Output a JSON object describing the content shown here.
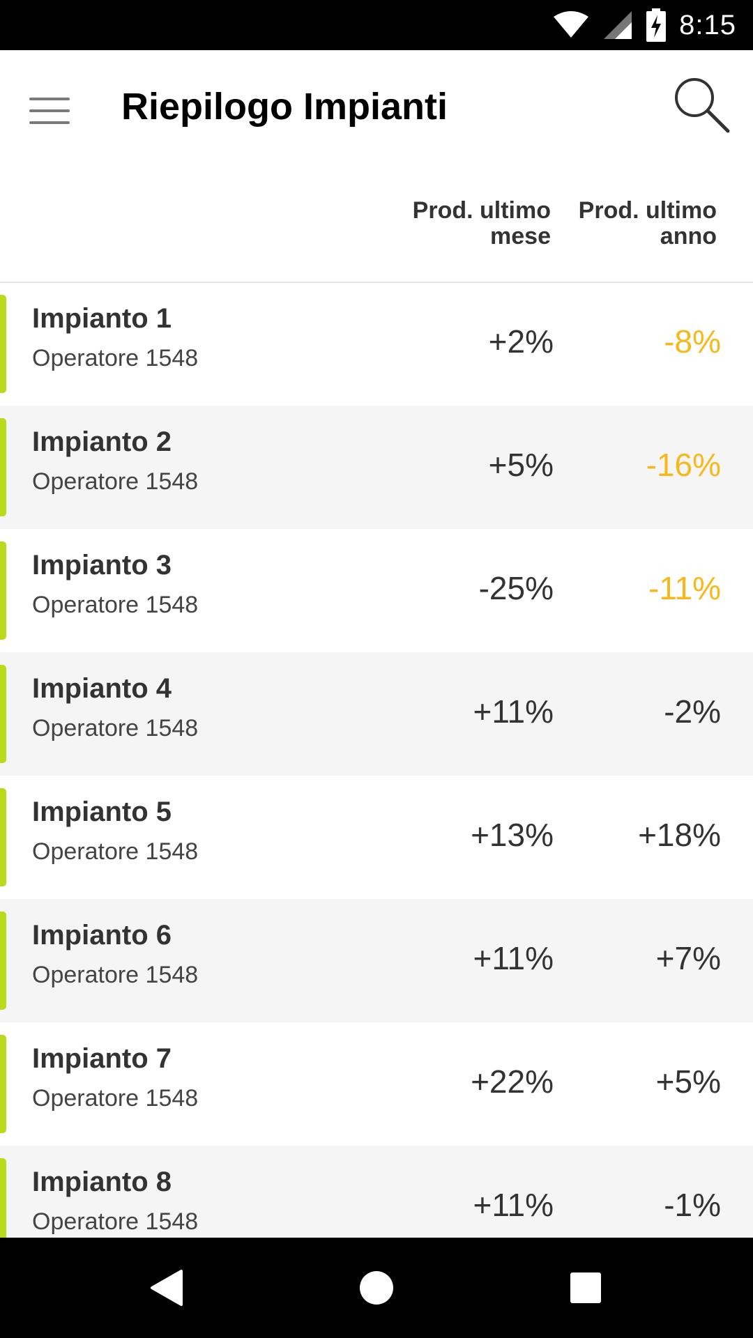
{
  "status_bar": {
    "time": "8:15",
    "icons": [
      "wifi-icon",
      "signal-icon",
      "battery-charging-icon"
    ]
  },
  "app_bar": {
    "title": "Riepilogo Impianti",
    "menu_icon": "menu-icon",
    "search_icon": "search-icon"
  },
  "columns": {
    "month": "Prod. ultimo mese",
    "year": "Prod. ultimo anno"
  },
  "colors": {
    "accent": "#b9db1c",
    "warning": "#f7b81c",
    "text": "#333333"
  },
  "rows": [
    {
      "name": "Impianto 1",
      "operator": "Operatore 1548",
      "month": "+2%",
      "year": "-8%",
      "year_warn": true
    },
    {
      "name": "Impianto 2",
      "operator": "Operatore 1548",
      "month": "+5%",
      "year": "-16%",
      "year_warn": true
    },
    {
      "name": "Impianto 3",
      "operator": "Operatore 1548",
      "month": "-25%",
      "year": "-11%",
      "year_warn": true
    },
    {
      "name": "Impianto 4",
      "operator": "Operatore 1548",
      "month": "+11%",
      "year": "-2%",
      "year_warn": false
    },
    {
      "name": "Impianto 5",
      "operator": "Operatore 1548",
      "month": "+13%",
      "year": "+18%",
      "year_warn": false
    },
    {
      "name": "Impianto 6",
      "operator": "Operatore 1548",
      "month": "+11%",
      "year": "+7%",
      "year_warn": false
    },
    {
      "name": "Impianto 7",
      "operator": "Operatore 1548",
      "month": "+22%",
      "year": "+5%",
      "year_warn": false
    },
    {
      "name": "Impianto 8",
      "operator": "Operatore 1548",
      "month": "+11%",
      "year": "-1%",
      "year_warn": false
    }
  ],
  "nav_bar": {
    "icons": [
      "back-icon",
      "home-icon",
      "recents-icon"
    ]
  }
}
